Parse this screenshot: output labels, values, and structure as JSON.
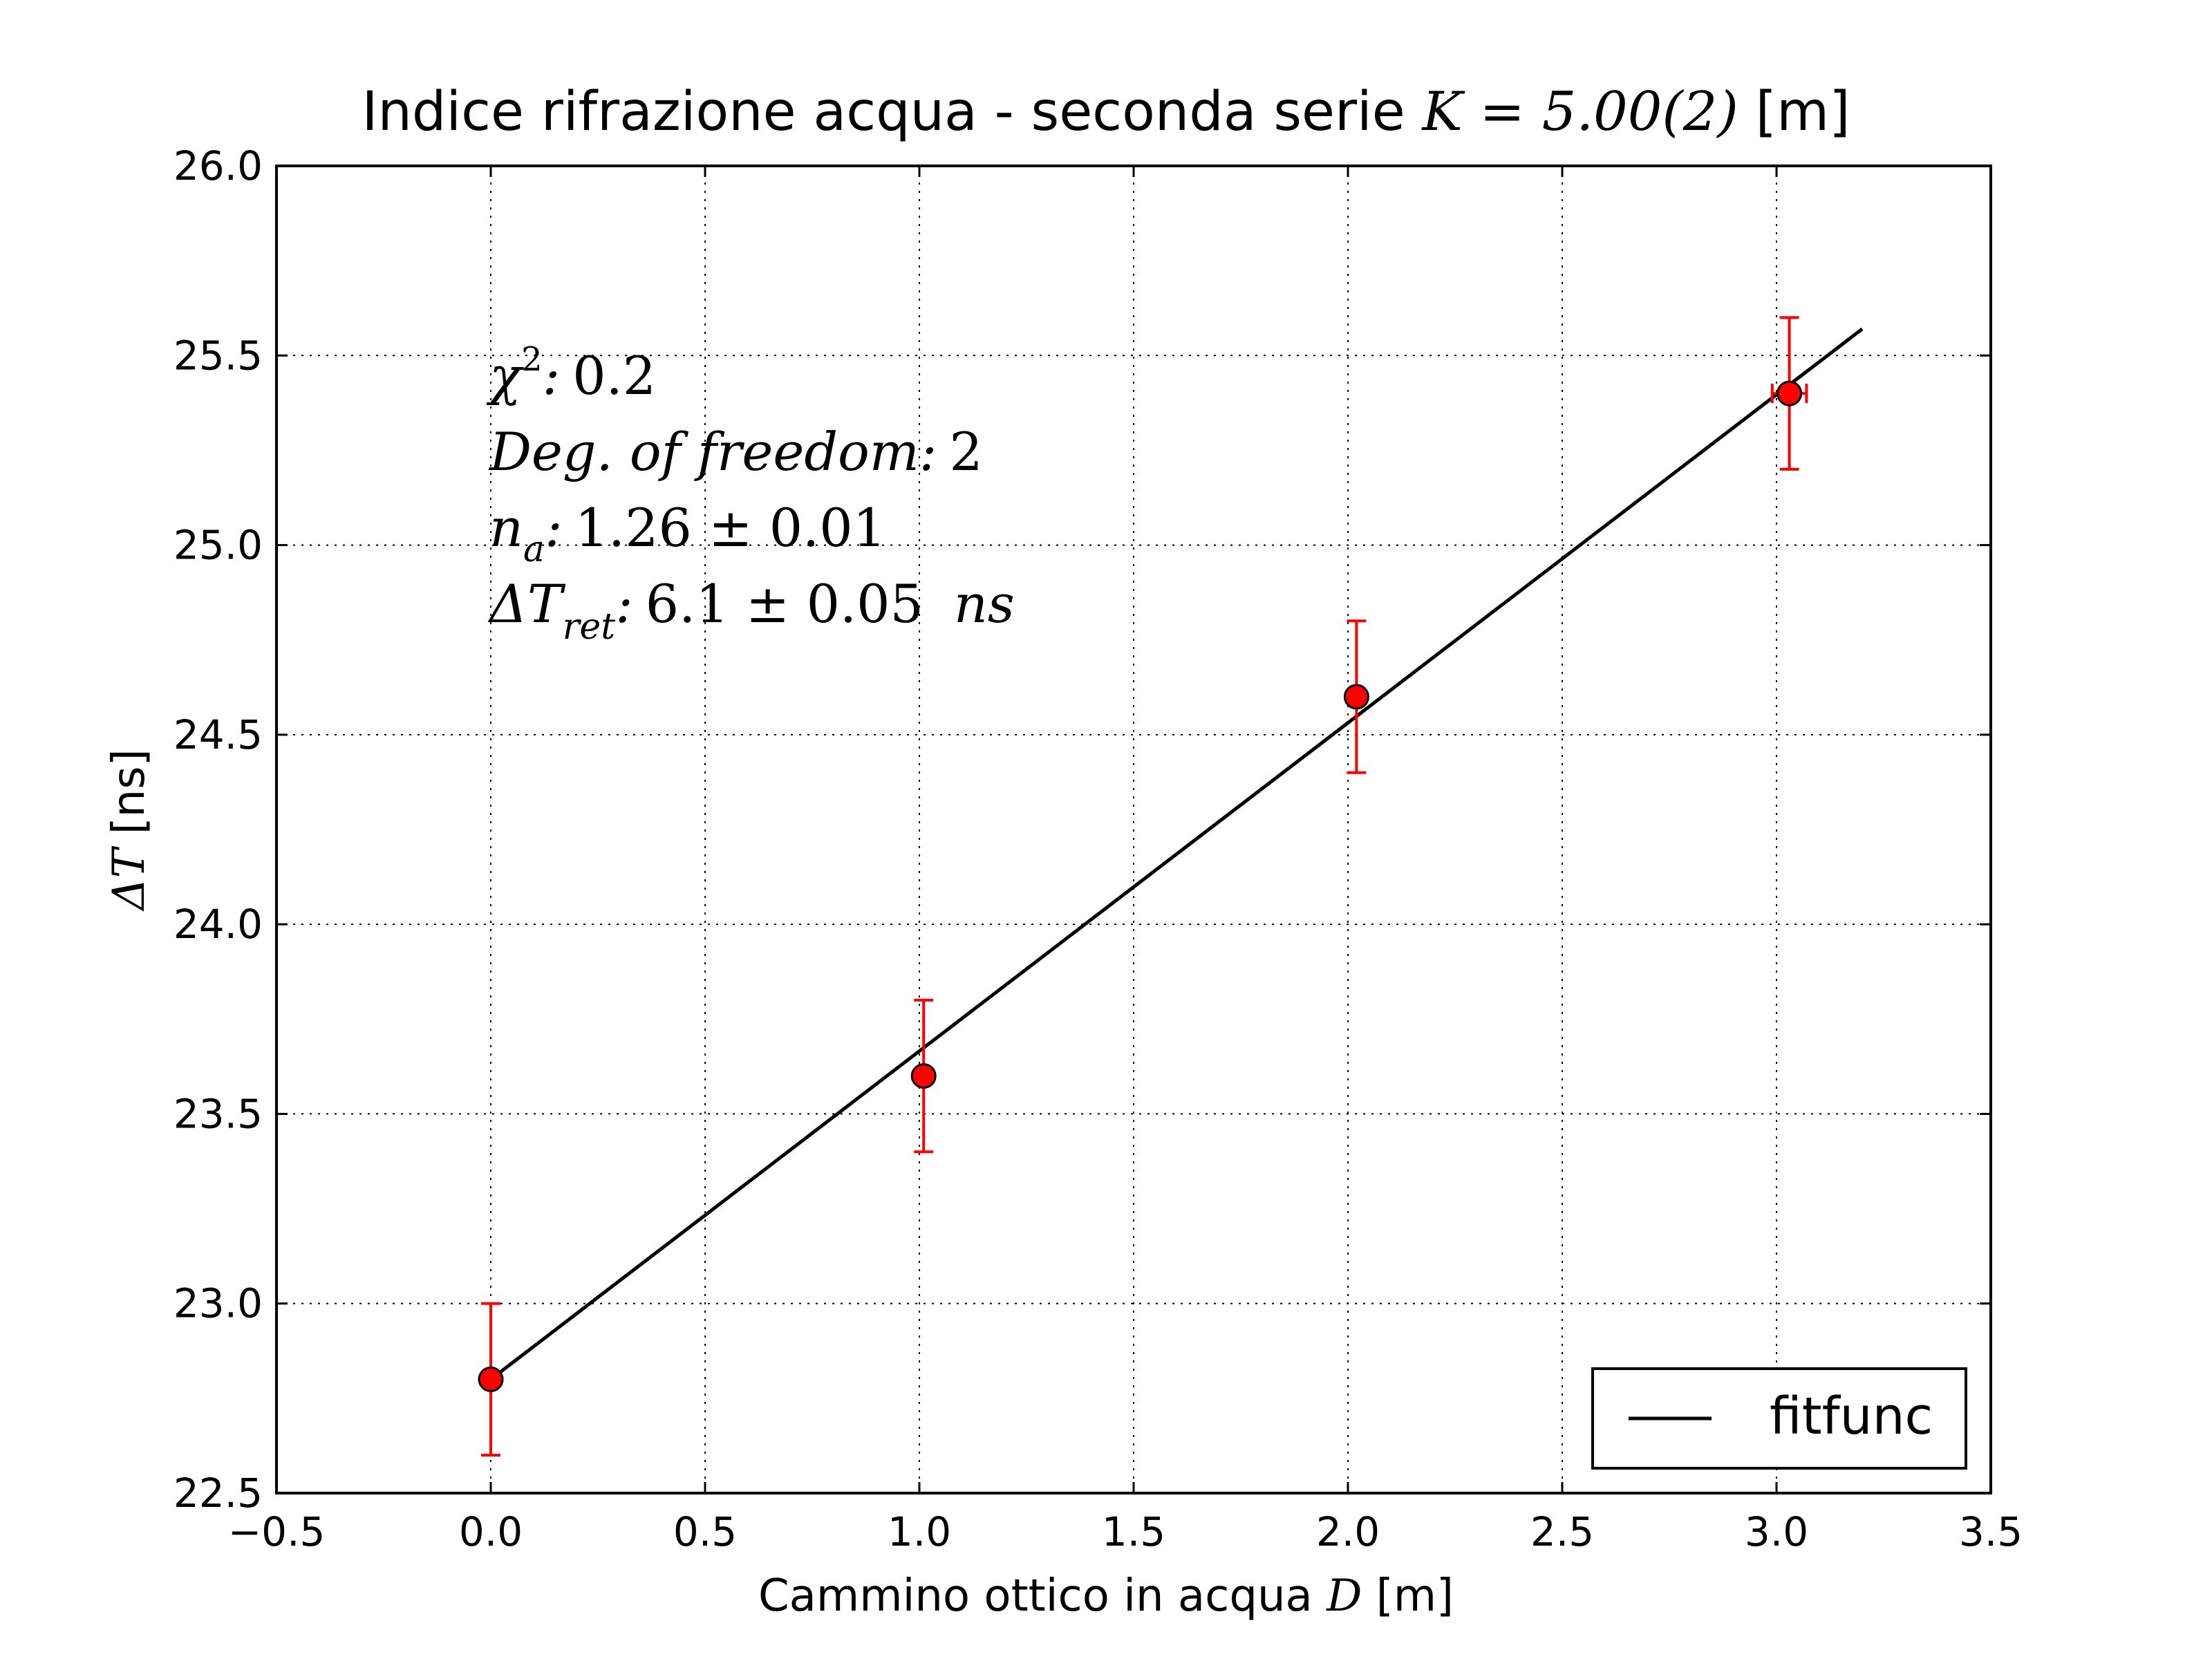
{
  "chart_data": {
    "type": "scatter",
    "title": {
      "prefix": "Indice rifrazione acqua - seconda serie ",
      "math": "K = 5.00(2)",
      "suffix": " [m]"
    },
    "xlabel": {
      "prefix": "Cammino ottico in acqua ",
      "math": "D",
      "suffix": " [m]"
    },
    "ylabel": {
      "math": "ΔT",
      "suffix": " [ns]"
    },
    "xlim": [
      -0.5,
      3.5
    ],
    "ylim": [
      22.5,
      26.0
    ],
    "xticks": [
      -0.5,
      0.0,
      0.5,
      1.0,
      1.5,
      2.0,
      2.5,
      3.0,
      3.5
    ],
    "xtick_labels": [
      "−0.5",
      "0.0",
      "0.5",
      "1.0",
      "1.5",
      "2.0",
      "2.5",
      "3.0",
      "3.5"
    ],
    "yticks": [
      22.5,
      23.0,
      23.5,
      24.0,
      24.5,
      25.0,
      25.5,
      26.0
    ],
    "ytick_labels": [
      "22.5",
      "23.0",
      "23.5",
      "24.0",
      "24.5",
      "25.0",
      "25.5",
      "26.0"
    ],
    "grid": true,
    "series": [
      {
        "kind": "errorbar",
        "x": [
          0.0,
          1.01,
          2.02,
          3.03
        ],
        "y": [
          22.8,
          23.6,
          24.6,
          25.4
        ],
        "yerr": [
          0.2,
          0.2,
          0.2,
          0.2
        ],
        "xerr": [
          0.0,
          0.0,
          0.0,
          0.04
        ],
        "marker_color": "#ff0000",
        "error_color": "#ff0000"
      },
      {
        "kind": "line",
        "name": "fitfunc",
        "x": [
          0.0,
          3.2
        ],
        "y": [
          22.8,
          25.57
        ],
        "color": "#000000"
      }
    ],
    "legend": {
      "placement": "lower-right",
      "entries": [
        "fitfunc"
      ]
    },
    "annotations": {
      "chi2": {
        "symbol": "χ",
        "sup": "2",
        "colon": ":",
        "value": "0.2"
      },
      "dof": {
        "label": "Deg. of freedom:",
        "value": "2"
      },
      "n": {
        "symbol": "n",
        "sub": "a",
        "colon": ":",
        "value": "1.26 ± 0.01"
      },
      "dt": {
        "symbol": "ΔT",
        "sub": "ret",
        "colon": ":",
        "value": "6.1 ± 0.05",
        "unit": "ns"
      }
    }
  }
}
